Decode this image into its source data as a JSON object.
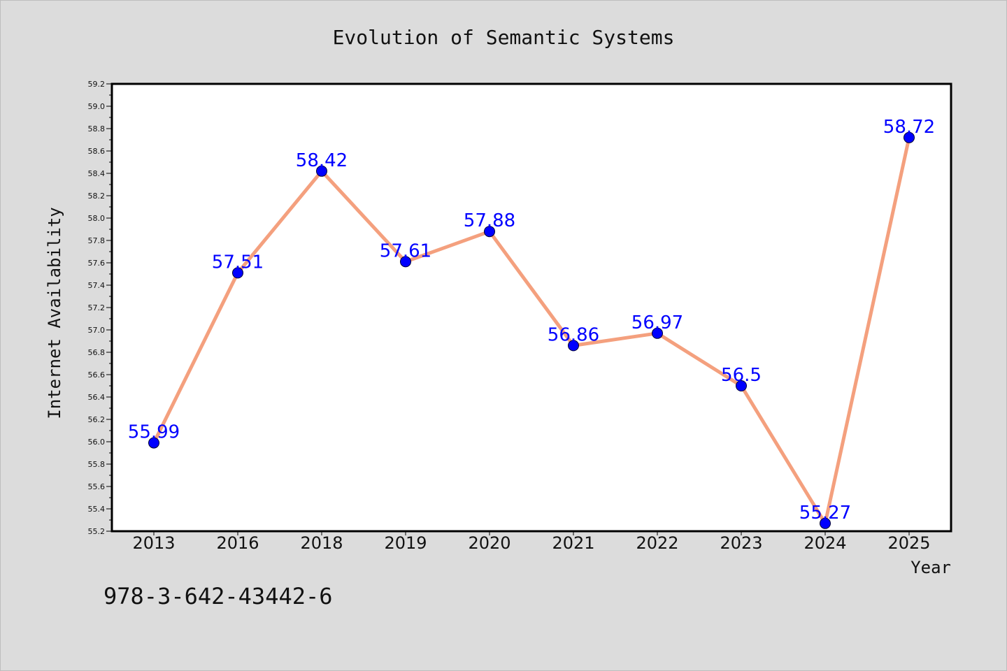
{
  "chart_data": {
    "type": "line",
    "title": "Evolution of Semantic Systems",
    "xlabel": "Year",
    "ylabel": "Internet Availability",
    "categories": [
      "2013",
      "2016",
      "2018",
      "2019",
      "2020",
      "2021",
      "2022",
      "2023",
      "2024",
      "2025"
    ],
    "values": [
      55.99,
      57.51,
      58.42,
      57.61,
      57.88,
      56.86,
      56.97,
      56.5,
      55.27,
      58.72
    ],
    "data_labels": [
      "55.99",
      "57.51",
      "58.42",
      "57.61",
      "57.88",
      "56.86",
      "56.97",
      "56.5",
      "55.27",
      "58.72"
    ],
    "ylim": [
      55.2,
      59.2
    ],
    "yticks": [
      55.2,
      55.4,
      55.6,
      55.8,
      56.0,
      56.2,
      56.4,
      56.6,
      56.8,
      57.0,
      57.2,
      57.4,
      57.6,
      57.8,
      58.0,
      58.2,
      58.4,
      58.6,
      58.8,
      59.0,
      59.2
    ],
    "ytick_labels": [
      "55.2",
      "55.4",
      "55.6",
      "55.8",
      "56.0",
      "56.2",
      "56.4",
      "56.6",
      "56.8",
      "57.0",
      "57.2",
      "57.4",
      "57.6",
      "57.8",
      "58.0",
      "58.2",
      "58.4",
      "58.6",
      "58.8",
      "59.0",
      "59.2"
    ],
    "grid": false,
    "legend": "none",
    "colors": {
      "line": "#f4a07e",
      "marker": "#0000ff",
      "data_label": "#0000ff",
      "background": "#dcdcdc",
      "plot_background": "#ffffff"
    }
  },
  "footer_text": "978-3-642-43442-6"
}
